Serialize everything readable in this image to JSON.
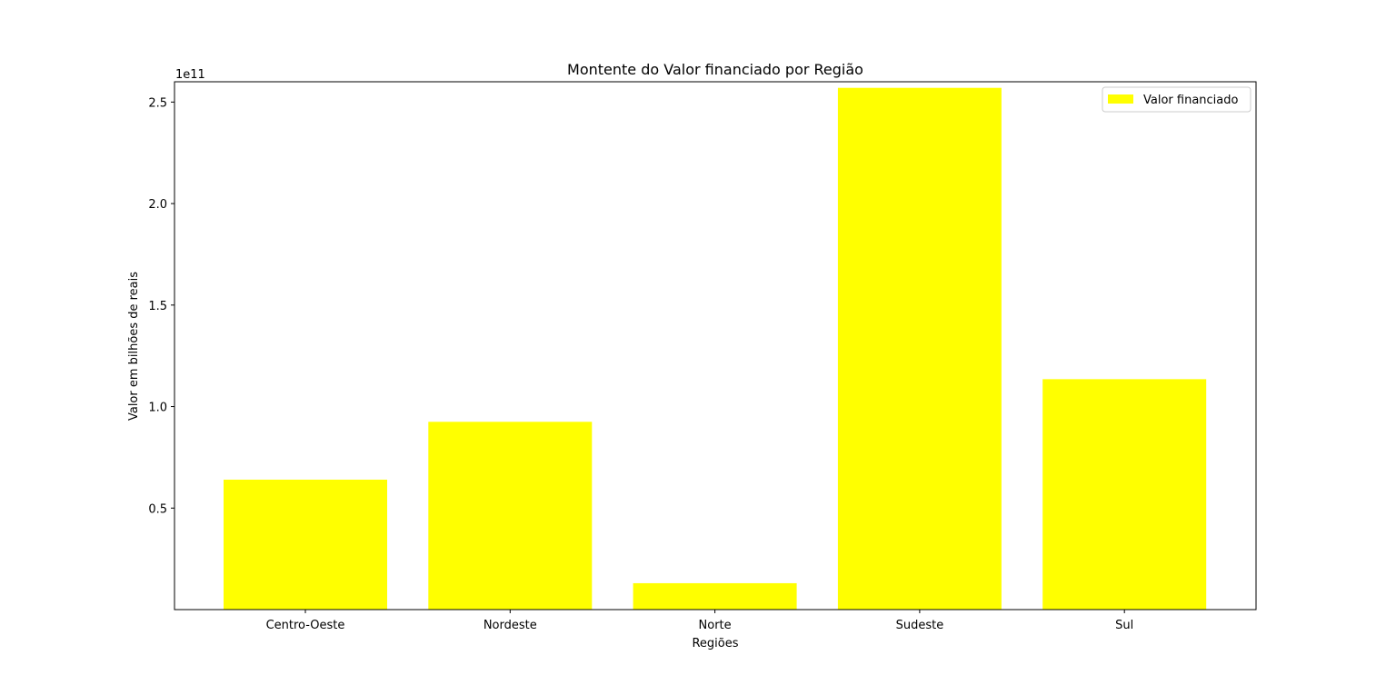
{
  "chart_data": {
    "type": "bar",
    "title": "Montente do Valor financiado por Região",
    "xlabel": "Regiões",
    "ylabel": "Valor em bilhões de reais",
    "y_offset_label": "1e11",
    "categories": [
      "Centro-Oeste",
      "Nordeste",
      "Norte",
      "Sudeste",
      "Sul"
    ],
    "series": [
      {
        "name": "Valor financiado",
        "color": "#ffff00",
        "values": [
          64000000000,
          92500000000,
          13000000000,
          257000000000,
          113500000000
        ]
      }
    ],
    "ylim": [
      0,
      260000000000
    ],
    "yticks": [
      50000000000,
      100000000000,
      150000000000,
      200000000000,
      250000000000
    ],
    "ytick_labels": [
      "0.5",
      "1.0",
      "1.5",
      "2.0",
      "2.5"
    ],
    "grid": false,
    "legend_position": "top-right"
  }
}
